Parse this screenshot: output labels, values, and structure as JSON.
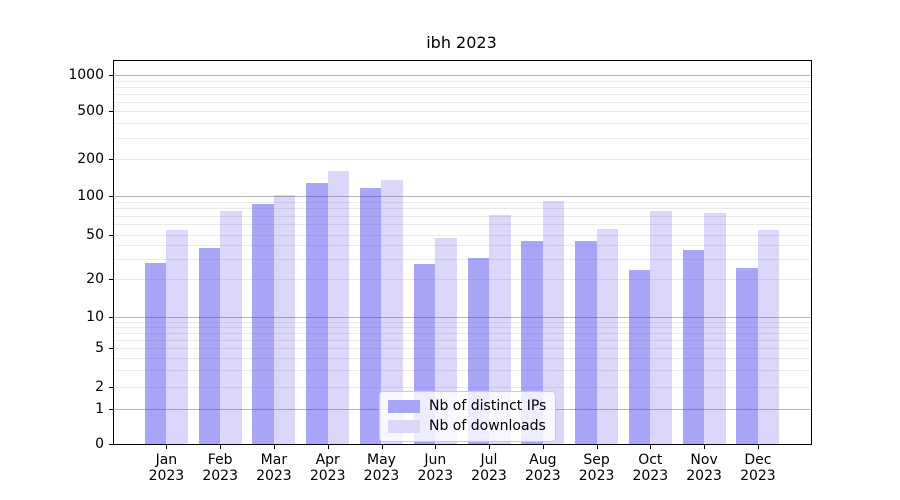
{
  "chart_data": {
    "type": "bar",
    "title": "ibh 2023",
    "categories": [
      "Jan 2023",
      "Feb 2023",
      "Mar 2023",
      "Apr 2023",
      "May 2023",
      "Jun 2023",
      "Jul 2023",
      "Aug 2023",
      "Sep 2023",
      "Oct 2023",
      "Nov 2023",
      "Dec 2023"
    ],
    "series": [
      {
        "name": "Nb of distinct IPs",
        "color": "#a8a4f7",
        "values": [
          28,
          38,
          87,
          128,
          116,
          27,
          31,
          44,
          44,
          24,
          36,
          25
        ]
      },
      {
        "name": "Nb of downloads",
        "color": "#dad7fa",
        "values": [
          54,
          76,
          102,
          160,
          135,
          47,
          71,
          92,
          55,
          76,
          73,
          54
        ]
      }
    ],
    "y_ticks": [
      0,
      1,
      2,
      5,
      10,
      20,
      50,
      100,
      200,
      500,
      1000
    ],
    "y_scale": "symlog",
    "ylim": [
      0,
      1300
    ],
    "xlabel": "",
    "ylabel": "",
    "grid": "horizontal major and minor log gridlines",
    "legend_position": "lower center"
  }
}
